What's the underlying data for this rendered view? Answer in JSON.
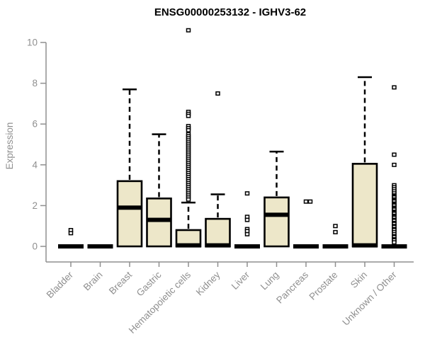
{
  "chart_data": {
    "type": "boxplot",
    "title": "ENSG00000253132 - IGHV3-62",
    "ylabel": "Expression",
    "xlabel": "",
    "ylim": [
      0,
      10
    ],
    "yticks": [
      0,
      2,
      4,
      6,
      8,
      10
    ],
    "grid": false,
    "legend": "none",
    "categories": [
      "Bladder",
      "Brain",
      "Breast",
      "Gastric",
      "Hematopoietic cells",
      "Kidney",
      "Liver",
      "Lung",
      "Pancreas",
      "Prostate",
      "Skin",
      "Unknown / Other"
    ],
    "boxes": [
      {
        "category": "Bladder",
        "low": 0,
        "q1": 0,
        "median": 0,
        "q3": 0,
        "high": 0,
        "outliers": [
          0.8,
          0.65
        ]
      },
      {
        "category": "Brain",
        "low": 0,
        "q1": 0,
        "median": 0,
        "q3": 0,
        "high": 0,
        "outliers": []
      },
      {
        "category": "Breast",
        "low": 0,
        "q1": 0,
        "median": 1.9,
        "q3": 3.2,
        "high": 7.7,
        "outliers": []
      },
      {
        "category": "Gastric",
        "low": 0,
        "q1": 0,
        "median": 1.3,
        "q3": 2.35,
        "high": 5.5,
        "outliers": []
      },
      {
        "category": "Hematopoietic cells",
        "low": 0,
        "q1": 0,
        "median": 0.05,
        "q3": 0.8,
        "high": 2.15,
        "outliers": [
          10.6,
          6.6,
          6.5,
          6.4,
          5.9,
          5.8,
          5.7,
          5.5,
          5.4,
          5.3,
          5.2,
          5.1,
          5.0,
          4.9,
          4.8,
          4.7,
          4.6,
          4.5,
          4.4,
          4.3,
          4.2,
          4.1,
          4.0,
          3.9,
          3.8,
          3.7,
          3.6,
          3.5,
          3.4,
          3.3,
          3.2,
          3.1,
          3.0,
          2.9,
          2.8,
          2.7,
          2.6,
          2.5,
          2.4,
          2.3
        ]
      },
      {
        "category": "Kidney",
        "low": 0,
        "q1": 0,
        "median": 0.05,
        "q3": 1.35,
        "high": 2.55,
        "outliers": [
          7.5
        ]
      },
      {
        "category": "Liver",
        "low": 0,
        "q1": 0,
        "median": 0,
        "q3": 0,
        "high": 0,
        "outliers": [
          2.6,
          1.45,
          1.3,
          0.85,
          0.75,
          0.6
        ]
      },
      {
        "category": "Lung",
        "low": 0,
        "q1": 0,
        "median": 1.55,
        "q3": 2.4,
        "high": 4.65,
        "outliers": []
      },
      {
        "category": "Pancreas",
        "low": 0,
        "q1": 0,
        "median": 0,
        "q3": 0,
        "high": 0,
        "outliers": [
          2.2,
          2.2
        ]
      },
      {
        "category": "Prostate",
        "low": 0,
        "q1": 0,
        "median": 0,
        "q3": 0,
        "high": 0,
        "outliers": [
          1.0,
          0.7
        ]
      },
      {
        "category": "Skin",
        "low": 0,
        "q1": 0,
        "median": 0.05,
        "q3": 4.05,
        "high": 8.3,
        "outliers": []
      },
      {
        "category": "Unknown / Other",
        "low": 0,
        "q1": 0,
        "median": 0,
        "q3": 0,
        "high": 0,
        "outliers": [
          7.8,
          4.5,
          4.0,
          3.0,
          2.9,
          2.8,
          2.7,
          2.6,
          2.5,
          2.45,
          2.4,
          2.3,
          2.25,
          2.2,
          2.1,
          2.05,
          2.0,
          1.9,
          1.85,
          1.8,
          1.7,
          1.65,
          1.6,
          1.5,
          1.45,
          1.4,
          1.3,
          1.25,
          1.15,
          1.1,
          1.0,
          0.95,
          0.85,
          0.8,
          0.7,
          0.6,
          0.5,
          0.45,
          0.35,
          0.3,
          0.2
        ]
      }
    ],
    "style": {
      "box_fill": "#ede7c9",
      "box_stroke": "#000000",
      "median_color": "#000000",
      "whisker_color": "#000000",
      "outlier_fill": "#ffffff",
      "outlier_stroke": "#000000",
      "axis_color": "#8f8f8f",
      "tick_label_color": "#8f8f8f",
      "title_color": "#000000",
      "background": "#ffffff"
    }
  }
}
